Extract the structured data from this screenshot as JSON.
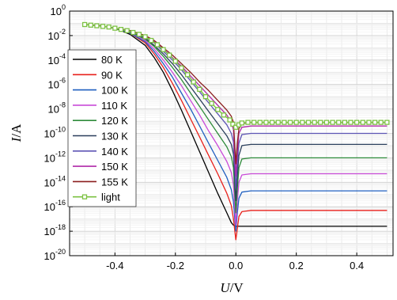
{
  "chart_data": {
    "type": "line",
    "title": "",
    "xlabel": {
      "italic": "U",
      "unit": "/V"
    },
    "ylabel": {
      "italic": "I",
      "unit": "/A"
    },
    "xlim": [
      -0.55,
      0.52
    ],
    "ylim_log10": [
      -20,
      0
    ],
    "y_scale": "log",
    "grid": true,
    "legend_placement": "left",
    "x_ticks": [
      {
        "value": -0.4,
        "label": "-0.4"
      },
      {
        "value": -0.2,
        "label": "-0.2"
      },
      {
        "value": 0.0,
        "label": "0.0"
      },
      {
        "value": 0.2,
        "label": "0.2"
      },
      {
        "value": 0.4,
        "label": "0.4"
      }
    ],
    "y_ticks": [
      {
        "exp": 0,
        "base": "10",
        "sup": "0"
      },
      {
        "exp": -2,
        "base": "10",
        "sup": "-2"
      },
      {
        "exp": -4,
        "base": "10",
        "sup": "-4"
      },
      {
        "exp": -6,
        "base": "10",
        "sup": "-6"
      },
      {
        "exp": -8,
        "base": "10",
        "sup": "-8"
      },
      {
        "exp": -10,
        "base": "10",
        "sup": "-10"
      },
      {
        "exp": -12,
        "base": "10",
        "sup": "-12"
      },
      {
        "exp": -14,
        "base": "10",
        "sup": "-14"
      },
      {
        "exp": -16,
        "base": "10",
        "sup": "-16"
      },
      {
        "exp": -18,
        "base": "10",
        "sup": "-18"
      },
      {
        "exp": -20,
        "base": "10",
        "sup": "-20"
      }
    ],
    "series": [
      {
        "name": "80 K",
        "color": "#000000",
        "x": [
          -0.5,
          -0.45,
          -0.4,
          -0.35,
          -0.3,
          -0.27,
          -0.24,
          -0.21,
          -0.18,
          -0.15,
          -0.12,
          -0.09,
          -0.06,
          -0.03,
          -0.015,
          -0.008,
          0.0,
          0.005,
          0.01,
          0.02,
          0.05,
          0.1,
          0.2,
          0.3,
          0.4,
          0.5
        ],
        "log10_y": [
          -1.1,
          -1.2,
          -1.4,
          -1.9,
          -2.8,
          -3.8,
          -5.0,
          -6.5,
          -8.1,
          -9.8,
          -11.5,
          -13.2,
          -14.9,
          -16.5,
          -17.3,
          -17.5,
          -17.6,
          -17.6,
          -17.6,
          -17.6,
          -17.6,
          -17.6,
          -17.6,
          -17.6,
          -17.6,
          -17.6
        ]
      },
      {
        "name": "90 K",
        "color": "#e8211c",
        "x": [
          -0.5,
          -0.45,
          -0.4,
          -0.35,
          -0.3,
          -0.27,
          -0.24,
          -0.21,
          -0.18,
          -0.15,
          -0.12,
          -0.09,
          -0.06,
          -0.03,
          -0.015,
          -0.008,
          0.0,
          0.005,
          0.01,
          0.02,
          0.05,
          0.1,
          0.2,
          0.3,
          0.4,
          0.5
        ],
        "log10_y": [
          -1.1,
          -1.2,
          -1.4,
          -1.8,
          -2.6,
          -3.5,
          -4.6,
          -5.9,
          -7.3,
          -8.8,
          -10.3,
          -11.8,
          -13.3,
          -14.9,
          -15.9,
          -17.0,
          -18.7,
          -17.8,
          -16.8,
          -16.4,
          -16.3,
          -16.3,
          -16.3,
          -16.3,
          -16.3,
          -16.3
        ]
      },
      {
        "name": "100 K",
        "color": "#1f5fbf",
        "x": [
          -0.5,
          -0.45,
          -0.4,
          -0.35,
          -0.3,
          -0.27,
          -0.24,
          -0.21,
          -0.18,
          -0.15,
          -0.12,
          -0.09,
          -0.06,
          -0.03,
          -0.015,
          -0.008,
          0.0,
          0.005,
          0.01,
          0.02,
          0.05,
          0.1,
          0.2,
          0.3,
          0.4,
          0.5
        ],
        "log10_y": [
          -1.1,
          -1.2,
          -1.4,
          -1.8,
          -2.5,
          -3.3,
          -4.3,
          -5.4,
          -6.7,
          -8.0,
          -9.4,
          -10.8,
          -12.2,
          -13.6,
          -14.6,
          -15.6,
          -18.0,
          -16.5,
          -15.3,
          -14.8,
          -14.7,
          -14.7,
          -14.7,
          -14.7,
          -14.7,
          -14.7
        ]
      },
      {
        "name": "110 K",
        "color": "#c94bd8",
        "x": [
          -0.5,
          -0.45,
          -0.4,
          -0.35,
          -0.3,
          -0.27,
          -0.24,
          -0.21,
          -0.18,
          -0.15,
          -0.12,
          -0.09,
          -0.06,
          -0.03,
          -0.015,
          -0.008,
          0.0,
          0.005,
          0.01,
          0.02,
          0.05,
          0.1,
          0.2,
          0.3,
          0.4,
          0.5
        ],
        "log10_y": [
          -1.1,
          -1.2,
          -1.4,
          -1.7,
          -2.4,
          -3.1,
          -4.0,
          -5.0,
          -6.1,
          -7.3,
          -8.5,
          -9.8,
          -11.0,
          -12.3,
          -13.2,
          -14.2,
          -17.5,
          -15.5,
          -14.0,
          -13.4,
          -13.3,
          -13.3,
          -13.3,
          -13.3,
          -13.3,
          -13.3
        ]
      },
      {
        "name": "120 K",
        "color": "#2e8b3a",
        "x": [
          -0.5,
          -0.45,
          -0.4,
          -0.35,
          -0.3,
          -0.27,
          -0.24,
          -0.21,
          -0.18,
          -0.15,
          -0.12,
          -0.09,
          -0.06,
          -0.03,
          -0.015,
          -0.008,
          0.0,
          0.005,
          0.01,
          0.02,
          0.05,
          0.1,
          0.2,
          0.3,
          0.4,
          0.5
        ],
        "log10_y": [
          -1.1,
          -1.2,
          -1.4,
          -1.7,
          -2.3,
          -2.9,
          -3.7,
          -4.6,
          -5.6,
          -6.7,
          -7.8,
          -8.9,
          -10.0,
          -11.1,
          -11.9,
          -12.8,
          -16.5,
          -14.5,
          -12.8,
          -12.1,
          -12.0,
          -12.0,
          -12.0,
          -12.0,
          -12.0,
          -12.0
        ]
      },
      {
        "name": "130 K",
        "color": "#2b3f5c",
        "x": [
          -0.5,
          -0.45,
          -0.4,
          -0.35,
          -0.3,
          -0.27,
          -0.24,
          -0.21,
          -0.18,
          -0.15,
          -0.12,
          -0.09,
          -0.06,
          -0.03,
          -0.015,
          -0.008,
          0.0,
          0.005,
          0.01,
          0.02,
          0.05,
          0.1,
          0.2,
          0.3,
          0.4,
          0.5
        ],
        "log10_y": [
          -1.1,
          -1.2,
          -1.4,
          -1.7,
          -2.2,
          -2.8,
          -3.5,
          -4.3,
          -5.2,
          -6.2,
          -7.2,
          -8.2,
          -9.2,
          -10.2,
          -10.9,
          -11.7,
          -15.5,
          -13.5,
          -11.8,
          -11.0,
          -10.9,
          -10.9,
          -10.9,
          -10.9,
          -10.9,
          -10.9
        ]
      },
      {
        "name": "140 K",
        "color": "#5d55b5",
        "x": [
          -0.5,
          -0.45,
          -0.4,
          -0.35,
          -0.3,
          -0.27,
          -0.24,
          -0.21,
          -0.18,
          -0.15,
          -0.12,
          -0.09,
          -0.06,
          -0.03,
          -0.015,
          -0.008,
          0.0,
          0.005,
          0.01,
          0.02,
          0.05,
          0.1,
          0.2,
          0.3,
          0.4,
          0.5
        ],
        "log10_y": [
          -1.1,
          -1.2,
          -1.4,
          -1.6,
          -2.1,
          -2.6,
          -3.3,
          -4.0,
          -4.8,
          -5.7,
          -6.6,
          -7.5,
          -8.4,
          -9.3,
          -10.0,
          -10.7,
          -14.5,
          -12.5,
          -10.8,
          -10.1,
          -10.0,
          -10.0,
          -10.0,
          -10.0,
          -10.0,
          -10.0
        ]
      },
      {
        "name": "150 K",
        "color": "#b028a8",
        "x": [
          -0.5,
          -0.45,
          -0.4,
          -0.35,
          -0.3,
          -0.27,
          -0.24,
          -0.21,
          -0.18,
          -0.15,
          -0.12,
          -0.09,
          -0.06,
          -0.03,
          -0.015,
          -0.008,
          0.0,
          0.005,
          0.01,
          0.02,
          0.05,
          0.1,
          0.2,
          0.3,
          0.4,
          0.5
        ],
        "log10_y": [
          -1.1,
          -1.2,
          -1.4,
          -1.6,
          -2.0,
          -2.5,
          -3.1,
          -3.8,
          -4.5,
          -5.3,
          -6.1,
          -6.9,
          -7.7,
          -8.5,
          -9.1,
          -9.7,
          -13.5,
          -11.5,
          -10.0,
          -9.5,
          -9.4,
          -9.4,
          -9.4,
          -9.4,
          -9.4,
          -9.4
        ]
      },
      {
        "name": "155 K",
        "color": "#8b1e1e",
        "x": [
          -0.5,
          -0.45,
          -0.4,
          -0.35,
          -0.3,
          -0.27,
          -0.24,
          -0.21,
          -0.18,
          -0.15,
          -0.12,
          -0.09,
          -0.06,
          -0.03,
          -0.015,
          -0.008,
          0.0,
          0.005,
          0.01,
          0.02,
          0.05,
          0.1,
          0.2,
          0.3,
          0.4,
          0.5
        ],
        "log10_y": [
          -1.1,
          -1.2,
          -1.4,
          -1.6,
          -2.0,
          -2.4,
          -3.0,
          -3.6,
          -4.3,
          -5.0,
          -5.8,
          -6.5,
          -7.3,
          -8.1,
          -8.6,
          -9.1,
          -12.5,
          -10.8,
          -9.6,
          -9.2,
          -9.1,
          -9.1,
          -9.1,
          -9.1,
          -9.1,
          -9.1
        ]
      },
      {
        "name": "light",
        "color": "#7cc242",
        "marker": "square",
        "x": [
          -0.5,
          -0.48,
          -0.46,
          -0.44,
          -0.42,
          -0.4,
          -0.38,
          -0.36,
          -0.34,
          -0.32,
          -0.3,
          -0.28,
          -0.26,
          -0.24,
          -0.22,
          -0.2,
          -0.18,
          -0.16,
          -0.14,
          -0.12,
          -0.1,
          -0.08,
          -0.06,
          -0.04,
          -0.02,
          -0.01,
          0.0,
          0.01,
          0.02,
          0.04,
          0.06,
          0.08,
          0.1,
          0.12,
          0.14,
          0.16,
          0.18,
          0.2,
          0.22,
          0.24,
          0.26,
          0.28,
          0.3,
          0.32,
          0.34,
          0.36,
          0.38,
          0.4,
          0.42,
          0.44,
          0.46,
          0.48,
          0.5
        ],
        "log10_y": [
          -1.1,
          -1.15,
          -1.2,
          -1.25,
          -1.3,
          -1.4,
          -1.5,
          -1.6,
          -1.75,
          -1.9,
          -2.1,
          -2.4,
          -2.75,
          -3.15,
          -3.6,
          -4.1,
          -4.65,
          -5.2,
          -5.8,
          -6.4,
          -7.0,
          -7.55,
          -8.05,
          -8.5,
          -8.9,
          -9.25,
          -9.5,
          -9.3,
          -9.15,
          -9.1,
          -9.1,
          -9.1,
          -9.1,
          -9.1,
          -9.1,
          -9.1,
          -9.1,
          -9.1,
          -9.1,
          -9.1,
          -9.1,
          -9.1,
          -9.1,
          -9.1,
          -9.1,
          -9.1,
          -9.1,
          -9.1,
          -9.1,
          -9.1,
          -9.1,
          -9.1,
          -9.1
        ]
      }
    ]
  }
}
